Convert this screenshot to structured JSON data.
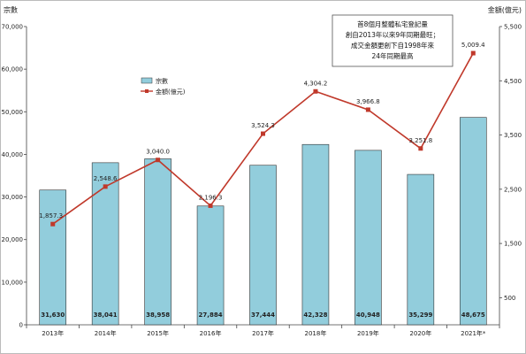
{
  "chart_data": {
    "type": "bar",
    "title": "",
    "categories": [
      "2013年",
      "2014年",
      "2015年",
      "2016年",
      "2017年",
      "2018年",
      "2019年",
      "2020年",
      "2021年*"
    ],
    "series": [
      {
        "name": "宗數",
        "type": "bar",
        "axis": "left",
        "color": "#92cddc",
        "values": [
          31630,
          38041,
          38958,
          27884,
          37444,
          42328,
          40948,
          35299,
          48675
        ],
        "labels": [
          "31,630",
          "38,041",
          "38,958",
          "27,884",
          "37,444",
          "42,328",
          "40,948",
          "35,299",
          "48,675"
        ]
      },
      {
        "name": "金額(億元)",
        "type": "line",
        "axis": "right",
        "color": "#c0392b",
        "values": [
          1857.3,
          2548.6,
          3040.0,
          2196.3,
          3524.3,
          4304.2,
          3966.8,
          3251.8,
          5009.4
        ],
        "labels": [
          "1,857.3",
          "2,548.6",
          "3,040.0",
          "2,196.3",
          "3,524.3",
          "4,304.2",
          "3,966.8",
          "3,251.8",
          "5,009.4"
        ]
      }
    ],
    "ylabel_left": "宗數",
    "ylabel_right": "金額(億元)",
    "ylim_left": [
      0,
      70000
    ],
    "ylim_right": [
      0,
      5500
    ],
    "yticks_left": [
      "0",
      "10,000",
      "20,000",
      "30,000",
      "40,000",
      "50,000",
      "60,000",
      "70,000"
    ],
    "yticks_right": [
      "500",
      "1,500",
      "2,500",
      "3,500",
      "4,500",
      "5,500"
    ],
    "yticks_right_values": [
      500,
      1500,
      2500,
      3500,
      4500,
      5500
    ],
    "grid": false,
    "legend": "upper-left",
    "annotation": [
      "首8個月整體私宅登記量",
      "創自2013年以來9年同期最旺；",
      "成交金額更創下自1998年來",
      "24年同期最高"
    ]
  }
}
